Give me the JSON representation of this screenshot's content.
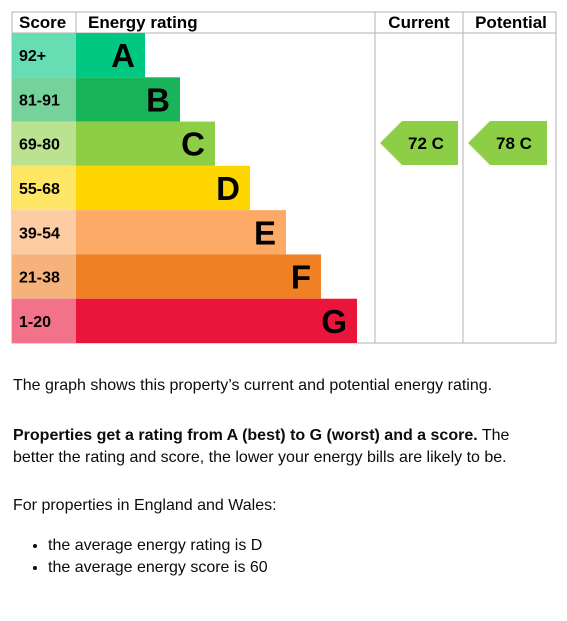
{
  "table": {
    "headers": [
      "Score",
      "Energy rating",
      "Current",
      "Potential"
    ],
    "bands": [
      {
        "score": "92+",
        "letter": "A"
      },
      {
        "score": "81-91",
        "letter": "B"
      },
      {
        "score": "69-80",
        "letter": "C"
      },
      {
        "score": "55-68",
        "letter": "D"
      },
      {
        "score": "39-54",
        "letter": "E"
      },
      {
        "score": "21-38",
        "letter": "F"
      },
      {
        "score": "1-20",
        "letter": "G"
      }
    ],
    "current": "72 C",
    "potential": "78 C"
  },
  "text": {
    "intro": "The graph shows this property’s current and potential energy rating.",
    "rating_bold": "Properties get a rating from A (best) to G (worst) and a score.",
    "rating_rest": " The better the rating and score, the lower your energy bills are likely to be.",
    "region": "For properties in England and Wales:",
    "bullets": [
      "the average energy rating is D",
      "the average energy score is 60"
    ]
  }
}
